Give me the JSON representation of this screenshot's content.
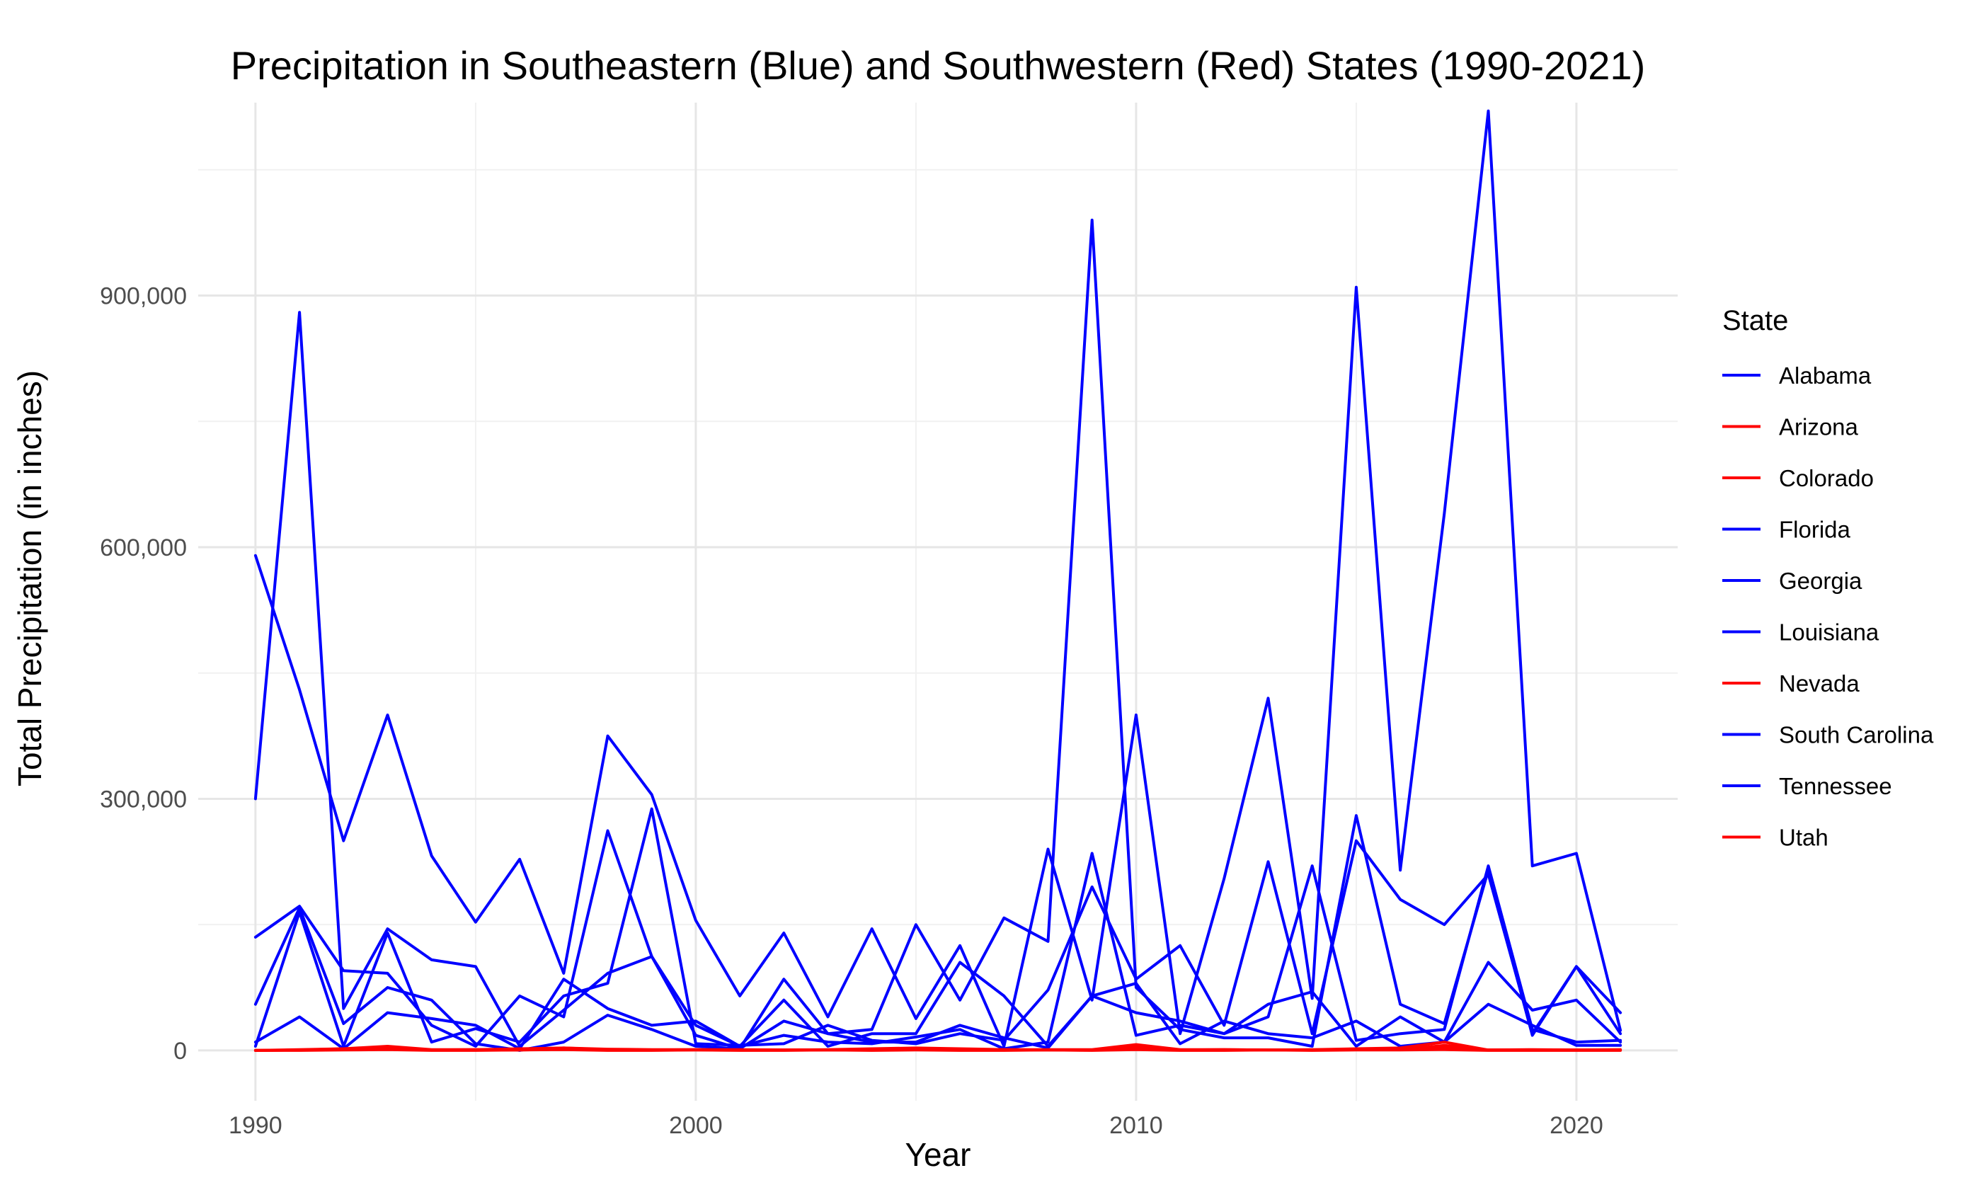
{
  "chart_data": {
    "type": "line",
    "title": "Precipitation in Southeastern (Blue) and Southwestern (Red) States (1990-2021)",
    "xlabel": "Year",
    "ylabel": "Total Precipitation (in inches)",
    "xlim": [
      1988.7,
      2022.3
    ],
    "ylim": [
      -60000,
      1130000
    ],
    "x": [
      1990,
      1991,
      1992,
      1993,
      1994,
      1995,
      1996,
      1997,
      1998,
      1999,
      2000,
      2001,
      2002,
      2003,
      2004,
      2005,
      2006,
      2007,
      2008,
      2009,
      2010,
      2011,
      2012,
      2013,
      2014,
      2015,
      2016,
      2017,
      2018,
      2019,
      2020,
      2021
    ],
    "x_ticks": [
      1990,
      2000,
      2010,
      2020
    ],
    "x_tick_labels": [
      "1990",
      "2000",
      "2010",
      "2020"
    ],
    "x_minor_ticks": [
      1995,
      2005,
      2015
    ],
    "y_ticks": [
      0,
      300000,
      600000,
      900000
    ],
    "y_tick_labels": [
      "0",
      "300,000",
      "600,000",
      "900,000"
    ],
    "y_minor_ticks": [
      150000,
      450000,
      750000,
      1050000
    ],
    "grid": true,
    "legend": {
      "title": "State",
      "position": "right"
    },
    "series": [
      {
        "name": "Alabama",
        "color": "#0000ff",
        "values": [
          300000,
          880000,
          50000,
          145000,
          108000,
          100000,
          5000,
          48000,
          92000,
          112000,
          30000,
          5000,
          18000,
          10000,
          8000,
          16000,
          25000,
          2000,
          10000,
          235000,
          18000,
          30000,
          20000,
          40000,
          220000,
          12000,
          20000,
          25000,
          220000,
          25000,
          10000,
          12000
        ]
      },
      {
        "name": "Arizona",
        "color": "#ff0000",
        "values": [
          0,
          1000,
          2000,
          3000,
          500,
          1000,
          500,
          3000,
          1000,
          500,
          1000,
          500,
          500,
          500,
          500,
          1000,
          500,
          1000,
          500,
          500,
          4000,
          500,
          1000,
          500,
          500,
          1000,
          1000,
          6000,
          500,
          500,
          500,
          1000
        ]
      },
      {
        "name": "Colorado",
        "color": "#ff0000",
        "values": [
          0,
          500,
          2000,
          5000,
          1000,
          1000,
          2000,
          3000,
          1500,
          1000,
          1000,
          1000,
          500,
          1000,
          2000,
          3000,
          2000,
          1000,
          1000,
          1000,
          7000,
          1000,
          1000,
          500,
          1000,
          2000,
          3000,
          10000,
          500,
          1000,
          500,
          500
        ]
      },
      {
        "name": "Florida",
        "color": "#0000ff",
        "values": [
          590000,
          430000,
          250000,
          400000,
          232000,
          153000,
          228000,
          92000,
          375000,
          305000,
          155000,
          65000,
          140000,
          40000,
          145000,
          38000,
          125000,
          5000,
          240000,
          60000,
          400000,
          20000,
          205000,
          420000,
          62000,
          910000,
          215000,
          640000,
          1120000,
          220000,
          235000,
          24000
        ]
      },
      {
        "name": "Georgia",
        "color": "#0000ff",
        "values": [
          135000,
          172000,
          95000,
          92000,
          30000,
          5000,
          65000,
          40000,
          262000,
          112000,
          18000,
          2000,
          85000,
          20000,
          25000,
          150000,
          60000,
          158000,
          130000,
          990000,
          75000,
          25000,
          15000,
          15000,
          5000,
          280000,
          55000,
          32000,
          215000,
          18000,
          100000,
          20000
        ]
      },
      {
        "name": "Louisiana",
        "color": "#0000ff",
        "values": [
          10000,
          40000,
          2000,
          45000,
          38000,
          30000,
          2000,
          85000,
          50000,
          30000,
          35000,
          5000,
          60000,
          5000,
          20000,
          20000,
          105000,
          65000,
          5000,
          65000,
          80000,
          8000,
          35000,
          20000,
          15000,
          35000,
          5000,
          10000,
          105000,
          48000,
          60000,
          10000
        ]
      },
      {
        "name": "Nevada",
        "color": "#ff0000",
        "values": [
          0,
          0,
          500,
          1000,
          0,
          0,
          500,
          1000,
          0,
          0,
          500,
          0,
          0,
          500,
          0,
          500,
          0,
          0,
          500,
          0,
          1000,
          0,
          0,
          500,
          0,
          500,
          500,
          1000,
          0,
          0,
          0,
          0
        ]
      },
      {
        "name": "South Carolina",
        "color": "#0000ff",
        "values": [
          55000,
          170000,
          32000,
          75000,
          60000,
          8000,
          0,
          10000,
          42000,
          25000,
          5000,
          2000,
          35000,
          20000,
          10000,
          10000,
          30000,
          15000,
          3000,
          65000,
          45000,
          35000,
          20000,
          55000,
          70000,
          5000,
          40000,
          10000,
          55000,
          30000,
          6000,
          6000
        ]
      },
      {
        "name": "Tennessee",
        "color": "#0000ff",
        "values": [
          5000,
          165000,
          5000,
          140000,
          10000,
          26000,
          10000,
          65000,
          80000,
          288000,
          8000,
          6000,
          8000,
          30000,
          12000,
          8000,
          20000,
          12000,
          72000,
          195000,
          85000,
          125000,
          30000,
          225000,
          20000,
          250000,
          180000,
          150000,
          210000,
          20000,
          100000,
          45000
        ]
      },
      {
        "name": "Utah",
        "color": "#ff0000",
        "values": [
          0,
          500,
          1000,
          2000,
          500,
          500,
          500,
          1500,
          1000,
          500,
          500,
          500,
          500,
          500,
          500,
          1000,
          500,
          500,
          500,
          500,
          3000,
          500,
          500,
          500,
          500,
          1000,
          1000,
          4000,
          500,
          500,
          500,
          500
        ]
      }
    ]
  }
}
